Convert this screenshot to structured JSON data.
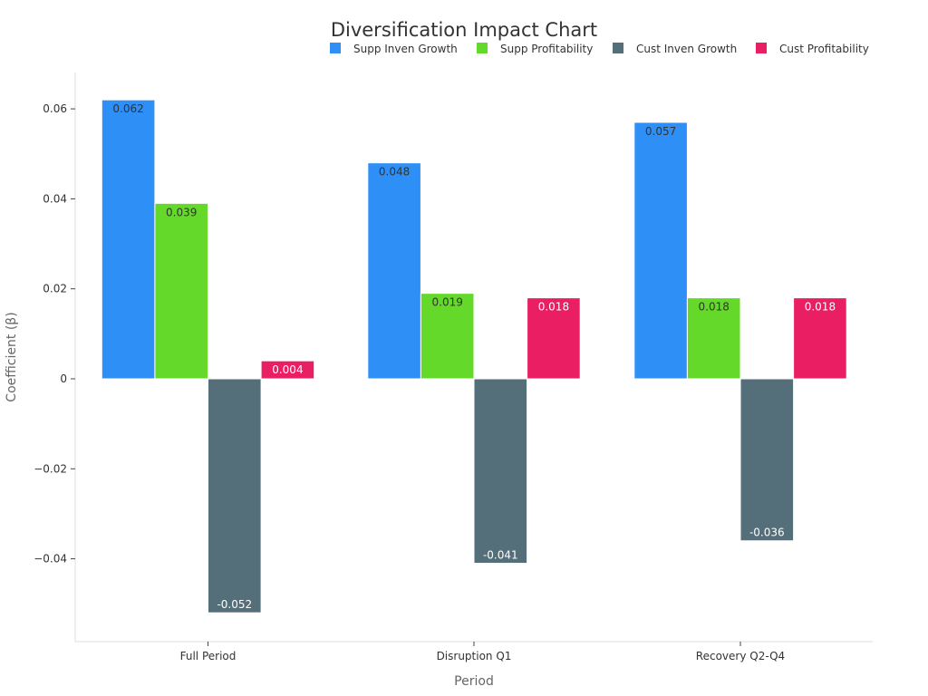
{
  "chart_data": {
    "type": "bar",
    "title": "Diversification Impact Chart",
    "xlabel": "Period",
    "ylabel": "Coefficient (β)",
    "categories": [
      "Full Period",
      "Disruption Q1",
      "Recovery Q2-Q4"
    ],
    "ylim": [
      -0.058,
      0.068
    ],
    "yticks": [
      -0.04,
      -0.02,
      0,
      0.02,
      0.04,
      0.06
    ],
    "ytick_labels": [
      "−0.04",
      "−0.02",
      "0",
      "0.02",
      "0.04",
      "0.06"
    ],
    "grid": false,
    "legend_position": "top-right",
    "series": [
      {
        "name": "Supp Inven Growth",
        "color": "#2e8ff7",
        "label_color": "#333333",
        "values": [
          0.062,
          0.048,
          0.057
        ],
        "labels": [
          "0.062",
          "0.048",
          "0.057"
        ]
      },
      {
        "name": "Supp Profitability",
        "color": "#64d929",
        "label_color": "#333333",
        "values": [
          0.039,
          0.019,
          0.018
        ],
        "labels": [
          "0.039",
          "0.019",
          "0.018"
        ]
      },
      {
        "name": "Cust Inven Growth",
        "color": "#546e7a",
        "label_color": "#ffffff",
        "values": [
          -0.052,
          -0.041,
          -0.036
        ],
        "labels": [
          "-0.052",
          "-0.041",
          "-0.036"
        ]
      },
      {
        "name": "Cust Profitability",
        "color": "#e91e63",
        "label_color": "#ffffff",
        "values": [
          0.004,
          0.018,
          0.018
        ],
        "labels": [
          "0.004",
          "0.018",
          "0.018"
        ]
      }
    ]
  }
}
